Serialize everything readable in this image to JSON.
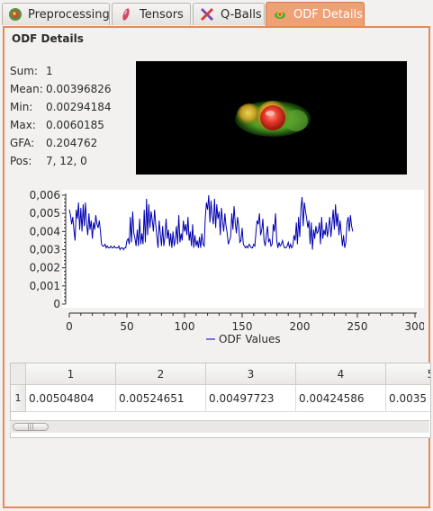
{
  "tabs": [
    {
      "label": "Preprocessing",
      "icon": "brain-icon",
      "active": false
    },
    {
      "label": "Tensors",
      "icon": "ellipsoid-icon",
      "active": false
    },
    {
      "label": "Q-Balls",
      "icon": "cross-fibers-icon",
      "active": false
    },
    {
      "label": "ODF Details",
      "icon": "odf-icon",
      "active": true
    }
  ],
  "panel": {
    "title": "ODF Details",
    "stats": [
      {
        "key": "Sum:",
        "value": "1"
      },
      {
        "key": "Mean:",
        "value": "0.00396826"
      },
      {
        "key": "Min:",
        "value": "0.00294184"
      },
      {
        "key": "Max:",
        "value": "0.0060185"
      },
      {
        "key": "GFA:",
        "value": "0.204762"
      },
      {
        "key": "Pos:",
        "value": "7, 12, 0"
      }
    ]
  },
  "chart_data": {
    "type": "line",
    "xlim": [
      0,
      300
    ],
    "ylim": [
      0,
      0.006
    ],
    "xticks": [
      "0",
      "50",
      "100",
      "150",
      "200",
      "250",
      "300"
    ],
    "yticks": [
      "0",
      "0,001",
      "0,002",
      "0,003",
      "0,004",
      "0,005",
      "0,006"
    ],
    "legend_position": "bottom",
    "series": [
      {
        "name": "ODF Values",
        "color": "#0000b0",
        "values": [
          0.0052,
          0.0049,
          0.0044,
          0.0048,
          0.0041,
          0.0035,
          0.0052,
          0.0047,
          0.0056,
          0.0041,
          0.0053,
          0.004,
          0.0055,
          0.0043,
          0.0056,
          0.0044,
          0.0038,
          0.005,
          0.0041,
          0.0046,
          0.0036,
          0.0045,
          0.0041,
          0.0049,
          0.0044,
          0.0042,
          0.0046,
          0.004,
          0.0033,
          0.0032,
          0.0032,
          0.0033,
          0.0031,
          0.0032,
          0.0031,
          0.0031,
          0.0032,
          0.0031,
          0.0031,
          0.0032,
          0.0031,
          0.0031,
          0.0031,
          0.0032,
          0.003,
          0.0031,
          0.0031,
          0.003,
          0.0031,
          0.0031,
          0.0035,
          0.0036,
          0.0033,
          0.0048,
          0.0034,
          0.0051,
          0.0039,
          0.0036,
          0.0032,
          0.0041,
          0.0032,
          0.0047,
          0.0033,
          0.0039,
          0.0033,
          0.0052,
          0.0034,
          0.0058,
          0.0038,
          0.0055,
          0.0042,
          0.0051,
          0.0046,
          0.004,
          0.0052,
          0.0044,
          0.0037,
          0.0031,
          0.0046,
          0.0039,
          0.0032,
          0.0043,
          0.0032,
          0.0037,
          0.0047,
          0.0036,
          0.0041,
          0.0032,
          0.0039,
          0.0031,
          0.004,
          0.0032,
          0.0036,
          0.0043,
          0.0033,
          0.0049,
          0.0034,
          0.0039,
          0.0035,
          0.0046,
          0.004,
          0.0044,
          0.0038,
          0.0048,
          0.0035,
          0.004,
          0.0032,
          0.0044,
          0.0031,
          0.0038,
          0.0032,
          0.0035,
          0.0031,
          0.0037,
          0.0031,
          0.0039,
          0.0033,
          0.0032,
          0.0047,
          0.0056,
          0.0052,
          0.006,
          0.0045,
          0.0057,
          0.0049,
          0.0044,
          0.0058,
          0.0042,
          0.0055,
          0.0047,
          0.0051,
          0.0038,
          0.0053,
          0.0046,
          0.004,
          0.005,
          0.0043,
          0.0039,
          0.0033,
          0.0035,
          0.0037,
          0.005,
          0.0041,
          0.0054,
          0.0045,
          0.0039,
          0.0048,
          0.0043,
          0.0034,
          0.0035,
          0.0042,
          0.0033,
          0.0032,
          0.0031,
          0.0032,
          0.0031,
          0.0033,
          0.0032,
          0.0031,
          0.0031,
          0.0033,
          0.0032,
          0.004,
          0.0046,
          0.0044,
          0.005,
          0.0038,
          0.0041,
          0.0047,
          0.0035,
          0.0032,
          0.0038,
          0.0043,
          0.0034,
          0.0036,
          0.0032,
          0.0033,
          0.0044,
          0.004,
          0.005,
          0.0035,
          0.0031,
          0.0034,
          0.0032,
          0.0033,
          0.0035,
          0.0032,
          0.0031,
          0.0031,
          0.0032,
          0.0034,
          0.0031,
          0.0033,
          0.0031,
          0.0032,
          0.0038,
          0.0035,
          0.0045,
          0.0033,
          0.0048,
          0.0037,
          0.0053,
          0.0059,
          0.0043,
          0.0056,
          0.0051,
          0.0047,
          0.0042,
          0.0046,
          0.0033,
          0.0045,
          0.003,
          0.0041,
          0.0036,
          0.0043,
          0.0039,
          0.004,
          0.0045,
          0.0033,
          0.0048,
          0.0036,
          0.0041,
          0.0038,
          0.0045,
          0.0037,
          0.0042,
          0.0048,
          0.0037,
          0.0044,
          0.0052,
          0.0041,
          0.0055,
          0.0043,
          0.005,
          0.0038,
          0.0046,
          0.0039,
          0.0032,
          0.0038,
          0.0031,
          0.0034,
          0.0045,
          0.0048,
          0.004,
          0.0049,
          0.0043,
          0.004
        ]
      }
    ]
  },
  "table": {
    "columns": [
      "1",
      "2",
      "3",
      "4",
      "5"
    ],
    "rows": [
      {
        "label": "1",
        "cells": [
          "0.00504804",
          "0.00524651",
          "0.00497723",
          "0.00424586",
          "0.0035"
        ]
      }
    ],
    "scroll_grip": "|||"
  },
  "colors": {
    "accent": "#f0a075",
    "panel_border": "#e48a58",
    "plot_line": "#0000b0"
  }
}
